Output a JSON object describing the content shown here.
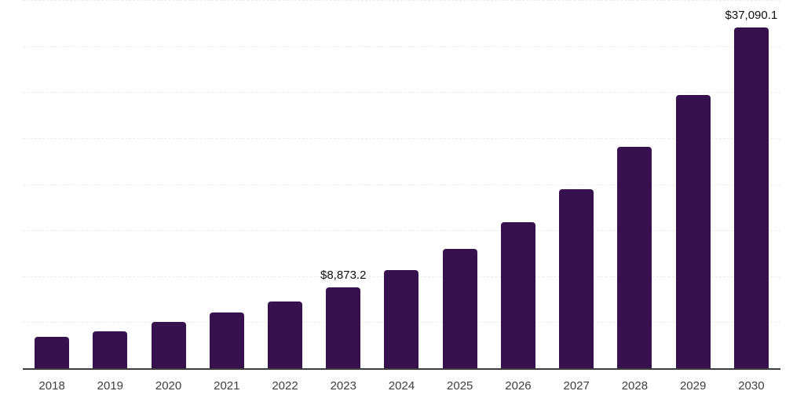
{
  "chart_data": {
    "type": "bar",
    "title": "",
    "xlabel": "",
    "ylabel": "",
    "categories": [
      "2018",
      "2019",
      "2020",
      "2021",
      "2022",
      "2023",
      "2024",
      "2025",
      "2026",
      "2027",
      "2028",
      "2029",
      "2030"
    ],
    "values": [
      3500,
      4100,
      5100,
      6100,
      7300,
      8873.2,
      10750,
      13050,
      15950,
      19500,
      24100,
      29800,
      37090.1
    ],
    "value_labels": {
      "2023": "$8,873.2",
      "2030": "$37,090.1"
    },
    "ylim": [
      0,
      40000
    ],
    "gridline_step": 5000,
    "grid": "horizontal-dashed",
    "legend_position": "none",
    "bar_color": "#36114e",
    "axis_color": "#3d3d3d",
    "gridline_color": "#ececec",
    "tick_label_color": "#3d3d3d",
    "value_label_color": "#0f0f0f",
    "background_color": "#ffffff"
  }
}
